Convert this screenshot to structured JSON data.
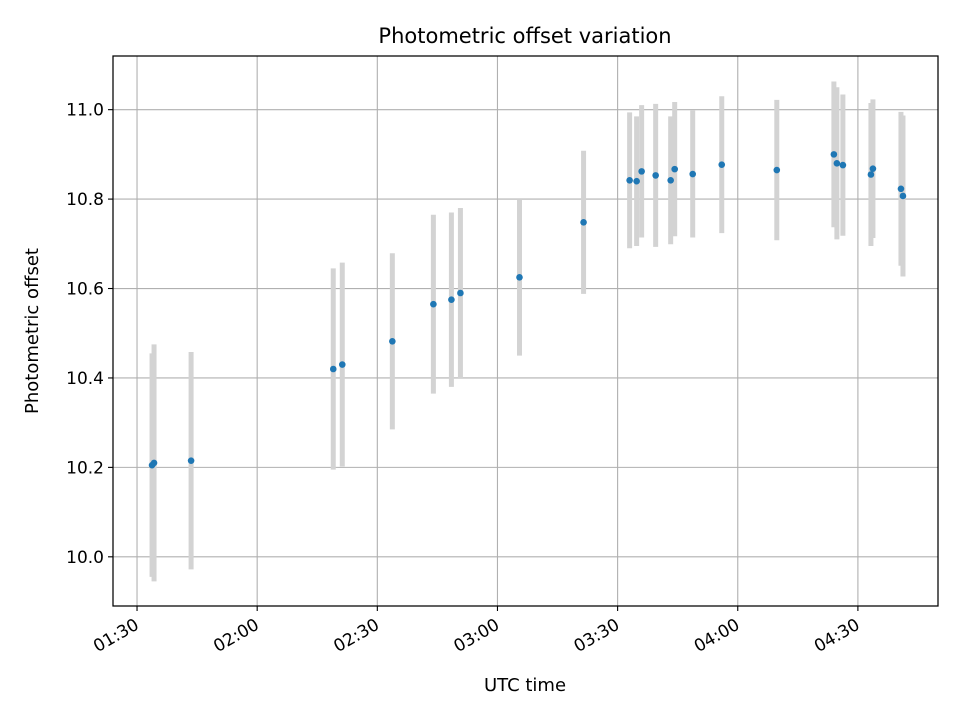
{
  "chart_data": {
    "type": "scatter",
    "title": "Photometric offset variation",
    "xlabel": "UTC time",
    "ylabel": "Photometric offset",
    "x_tick_labels": [
      "01:30",
      "02:00",
      "02:30",
      "03:00",
      "03:30",
      "04:00",
      "04:30"
    ],
    "y_tick_labels": [
      "10.0",
      "10.2",
      "10.4",
      "10.6",
      "10.8",
      "11.0"
    ],
    "xlim": [
      "01:24",
      "04:50"
    ],
    "ylim": [
      9.89,
      11.12
    ],
    "grid": true,
    "legend": false,
    "colors": {
      "point": "#1f77b4",
      "errorbar": "#d3d3d3",
      "grid": "#b0b0b0"
    },
    "points": [
      {
        "t": "01:33:45",
        "y": 10.205,
        "err": 0.25
      },
      {
        "t": "01:34:15",
        "y": 10.21,
        "err": 0.265
      },
      {
        "t": "01:43:30",
        "y": 10.215,
        "err": 0.243
      },
      {
        "t": "02:19:00",
        "y": 10.42,
        "err": 0.225
      },
      {
        "t": "02:21:15",
        "y": 10.43,
        "err": 0.228
      },
      {
        "t": "02:33:45",
        "y": 10.482,
        "err": 0.197
      },
      {
        "t": "02:44:00",
        "y": 10.565,
        "err": 0.2
      },
      {
        "t": "02:48:30",
        "y": 10.575,
        "err": 0.195
      },
      {
        "t": "02:50:45",
        "y": 10.59,
        "err": 0.19
      },
      {
        "t": "03:05:30",
        "y": 10.625,
        "err": 0.175
      },
      {
        "t": "03:21:30",
        "y": 10.748,
        "err": 0.16
      },
      {
        "t": "03:33:00",
        "y": 10.842,
        "err": 0.152
      },
      {
        "t": "03:34:45",
        "y": 10.84,
        "err": 0.145
      },
      {
        "t": "03:36:00",
        "y": 10.862,
        "err": 0.148
      },
      {
        "t": "03:39:30",
        "y": 10.853,
        "err": 0.16
      },
      {
        "t": "03:43:15",
        "y": 10.842,
        "err": 0.143
      },
      {
        "t": "03:44:15",
        "y": 10.867,
        "err": 0.15
      },
      {
        "t": "03:48:45",
        "y": 10.856,
        "err": 0.142
      },
      {
        "t": "03:56:00",
        "y": 10.877,
        "err": 0.153
      },
      {
        "t": "04:09:45",
        "y": 10.865,
        "err": 0.157
      },
      {
        "t": "04:24:00",
        "y": 10.9,
        "err": 0.163
      },
      {
        "t": "04:24:45",
        "y": 10.88,
        "err": 0.17
      },
      {
        "t": "04:26:15",
        "y": 10.876,
        "err": 0.158
      },
      {
        "t": "04:33:15",
        "y": 10.855,
        "err": 0.16
      },
      {
        "t": "04:33:45",
        "y": 10.868,
        "err": 0.155
      },
      {
        "t": "04:40:45",
        "y": 10.823,
        "err": 0.172
      },
      {
        "t": "04:41:15",
        "y": 10.807,
        "err": 0.18
      }
    ]
  }
}
